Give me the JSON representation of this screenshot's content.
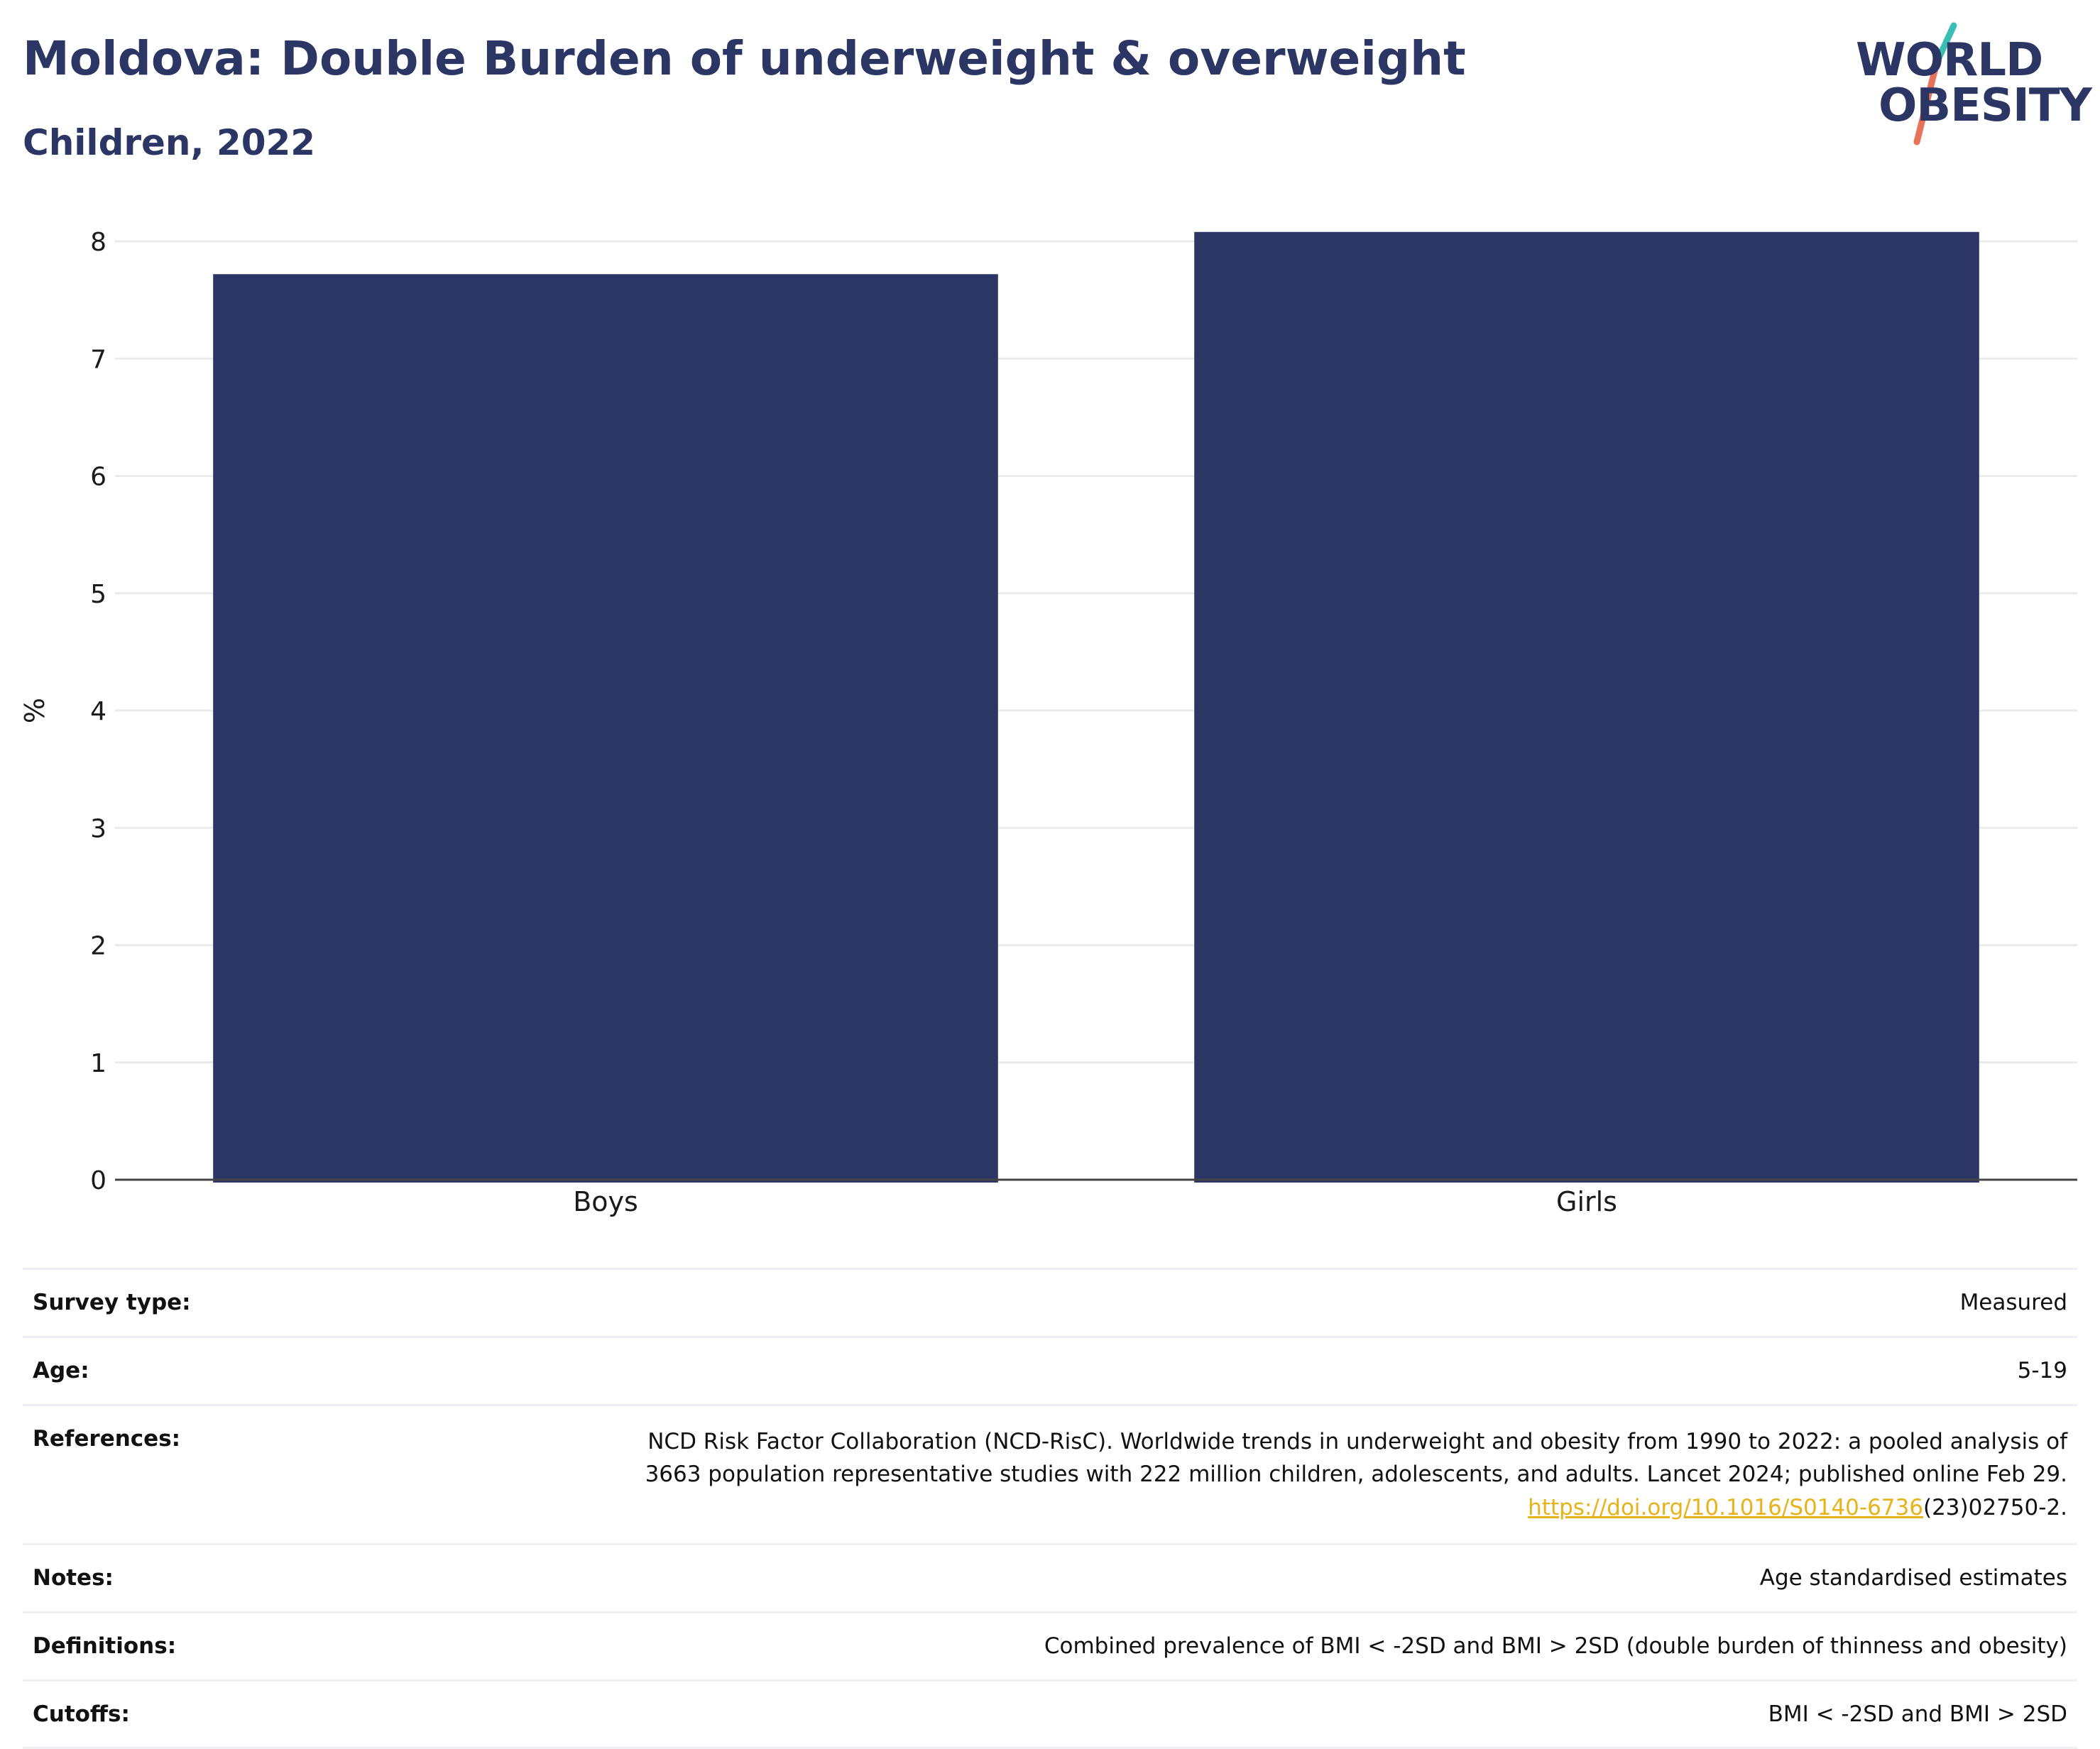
{
  "header": {
    "title": "Moldova: Double Burden of underweight & overweight",
    "subtitle": "Children, 2022"
  },
  "logo": {
    "line1": "WORLD",
    "line2": "OBESITY",
    "colors": {
      "text": "#2b3664",
      "slash_top": "#3bbfb4",
      "slash_bottom": "#e8725a"
    }
  },
  "chart_data": {
    "type": "bar",
    "categories": [
      "Boys",
      "Girls"
    ],
    "values": [
      7.72,
      8.08
    ],
    "title": "Moldova: Double Burden of underweight & overweight",
    "subtitle": "Children, 2022",
    "xlabel": "",
    "ylabel": "%",
    "ylim": [
      0,
      8.2
    ],
    "yticks": [
      0,
      1,
      2,
      3,
      4,
      5,
      6,
      7,
      8
    ],
    "grid": true,
    "bar_color": "#2b3664"
  },
  "info": {
    "survey_type": {
      "label": "Survey type:",
      "value": "Measured"
    },
    "age": {
      "label": "Age:",
      "value": "5-19"
    },
    "references": {
      "label": "References:",
      "line1": "NCD Risk Factor Collaboration (NCD-RisC). Worldwide trends in underweight and obesity from 1990 to 2022: a pooled analysis of",
      "line2": "3663 population representative studies with 222 million children, adolescents, and adults. Lancet 2024; published online Feb 29.",
      "link_text": "https://doi.org/10.1016/S0140-6736",
      "link_suffix": "(23)02750-2."
    },
    "notes": {
      "label": "Notes:",
      "value": "Age standardised estimates"
    },
    "definitions": {
      "label": "Definitions:",
      "value": "Combined prevalence of BMI < -2SD and BMI > 2SD (double burden of thinness and obesity)"
    },
    "cutoffs": {
      "label": "Cutoffs:",
      "value": "BMI < -2SD and BMI > 2SD"
    }
  }
}
